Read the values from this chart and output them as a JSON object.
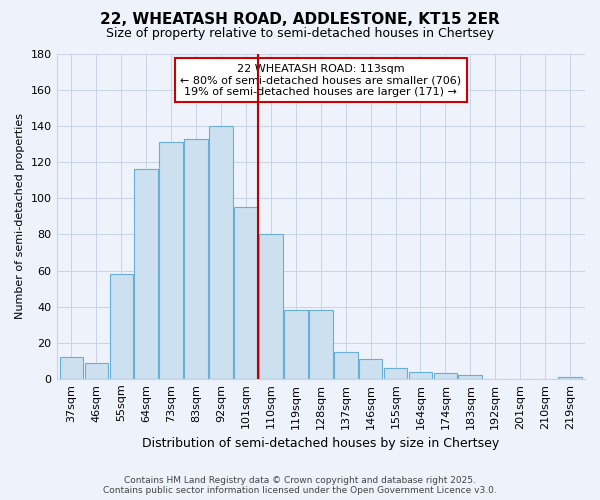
{
  "title": "22, WHEATASH ROAD, ADDLESTONE, KT15 2ER",
  "subtitle": "Size of property relative to semi-detached houses in Chertsey",
  "xlabel": "Distribution of semi-detached houses by size in Chertsey",
  "ylabel": "Number of semi-detached properties",
  "categories": [
    "37sqm",
    "46sqm",
    "55sqm",
    "64sqm",
    "73sqm",
    "83sqm",
    "92sqm",
    "101sqm",
    "110sqm",
    "119sqm",
    "128sqm",
    "137sqm",
    "146sqm",
    "155sqm",
    "164sqm",
    "174sqm",
    "183sqm",
    "192sqm",
    "201sqm",
    "210sqm",
    "219sqm"
  ],
  "values": [
    12,
    9,
    58,
    116,
    131,
    133,
    140,
    95,
    80,
    38,
    38,
    15,
    11,
    6,
    4,
    3,
    2,
    0,
    0,
    0,
    1
  ],
  "bar_color": "#cce0f0",
  "bar_edge_color": "#6aaed6",
  "marker_category_index": 8,
  "marker_line_color": "#bb0000",
  "annotation_text_line1": "22 WHEATASH ROAD: 113sqm",
  "annotation_text_line2": "← 80% of semi-detached houses are smaller (706)",
  "annotation_text_line3": "19% of semi-detached houses are larger (171) →",
  "annotation_box_color": "#ffffff",
  "annotation_box_edge_color": "#cc0000",
  "background_color": "#eef2fb",
  "grid_color": "#c8d4e8",
  "footer_line1": "Contains HM Land Registry data © Crown copyright and database right 2025.",
  "footer_line2": "Contains public sector information licensed under the Open Government Licence v3.0.",
  "ylim": [
    0,
    180
  ],
  "yticks": [
    0,
    20,
    40,
    60,
    80,
    100,
    120,
    140,
    160,
    180
  ],
  "title_fontsize": 11,
  "subtitle_fontsize": 9,
  "ylabel_fontsize": 8,
  "xlabel_fontsize": 9,
  "tick_fontsize": 8,
  "annot_fontsize": 8
}
